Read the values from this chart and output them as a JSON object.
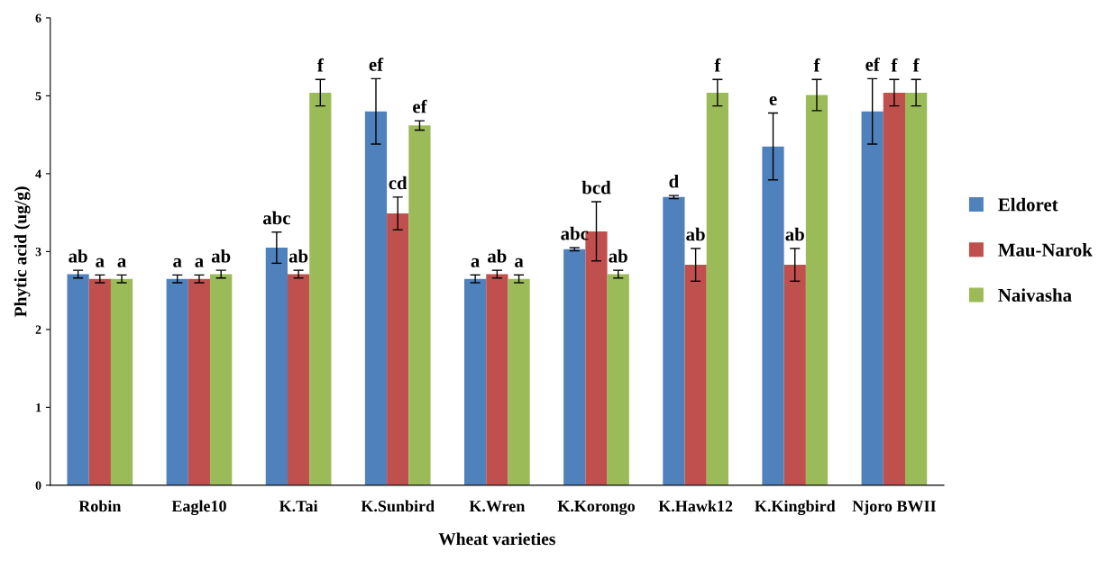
{
  "chart_data": {
    "type": "bar",
    "xlabel": "Wheat varieties",
    "ylabel": "Phytic acid (ug/g)",
    "categories": [
      "Robin",
      "Eagle10",
      "K.Tai",
      "K.Sunbird",
      "K.Wren",
      "K.Korongo",
      "K.Hawk12",
      "K.Kingbird",
      "Njoro BWII"
    ],
    "series": [
      {
        "name": "Eldoret",
        "color": "#4f81bd",
        "values": [
          2.71,
          2.65,
          3.05,
          4.8,
          2.65,
          3.03,
          3.7,
          4.35,
          4.8
        ],
        "errors": [
          0.05,
          0.05,
          0.2,
          0.42,
          0.05,
          0.02,
          0.02,
          0.43,
          0.42
        ],
        "value_labels": [
          "ab",
          "a",
          "abc",
          "ef",
          "a",
          "abc",
          "d",
          "e",
          "ef"
        ]
      },
      {
        "name": "Mau-Narok",
        "color": "#c0504d",
        "values": [
          2.65,
          2.65,
          2.71,
          3.49,
          2.71,
          3.26,
          2.83,
          2.83,
          5.04
        ],
        "errors": [
          0.05,
          0.05,
          0.05,
          0.21,
          0.05,
          0.38,
          0.21,
          0.21,
          0.17
        ],
        "value_labels": [
          "a",
          "a",
          "ab",
          "cd",
          "ab",
          "bcd",
          "ab",
          "ab",
          "f"
        ]
      },
      {
        "name": "Naivasha",
        "color": "#9bbb59",
        "values": [
          2.65,
          2.71,
          5.04,
          4.62,
          2.65,
          2.71,
          5.04,
          5.01,
          5.04
        ],
        "errors": [
          0.05,
          0.05,
          0.17,
          0.06,
          0.05,
          0.05,
          0.17,
          0.2,
          0.17
        ],
        "value_labels": [
          "a",
          "ab",
          "f",
          "ef",
          "a",
          "ab",
          "f",
          "f",
          "f"
        ]
      }
    ],
    "ylim": [
      0,
      6
    ],
    "yticks": [
      0,
      1,
      2,
      3,
      4,
      5,
      6
    ],
    "legend": "right",
    "grid": false
  }
}
